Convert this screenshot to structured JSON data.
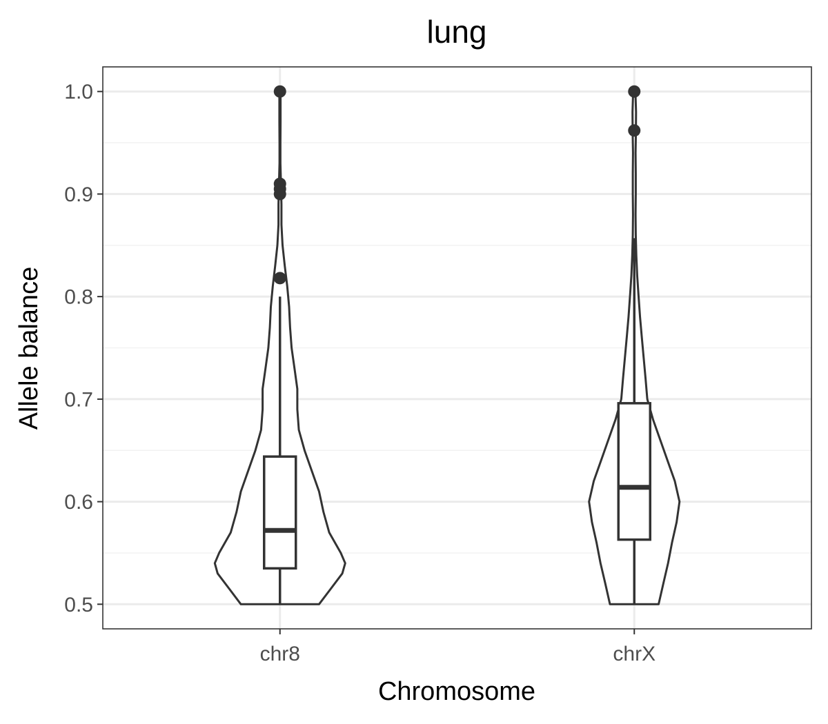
{
  "chart_data": {
    "type": "violin",
    "title": "lung",
    "xlabel": "Chromosome",
    "ylabel": "Allele balance",
    "categories": [
      "chr8",
      "chrX"
    ],
    "ylim": [
      0.476,
      1.024
    ],
    "yticks": [
      0.5,
      0.6,
      0.7,
      0.8,
      0.9,
      1.0
    ],
    "ytick_labels": [
      "0.5",
      "0.6",
      "0.7",
      "0.8",
      "0.9",
      "1.0"
    ],
    "grid": true,
    "colors": {
      "stroke": "#333333",
      "grid_major": "#ebebeb",
      "grid_minor": "#f2f2f2",
      "panel_border": "#333333"
    },
    "violins": [
      {
        "category": "chr8",
        "min": 0.5,
        "max": 1.0,
        "profile": [
          [
            0.5,
            0.27
          ],
          [
            0.515,
            0.35
          ],
          [
            0.53,
            0.43
          ],
          [
            0.54,
            0.45
          ],
          [
            0.55,
            0.42
          ],
          [
            0.57,
            0.34
          ],
          [
            0.59,
            0.3
          ],
          [
            0.61,
            0.27
          ],
          [
            0.63,
            0.22
          ],
          [
            0.65,
            0.17
          ],
          [
            0.67,
            0.13
          ],
          [
            0.69,
            0.12
          ],
          [
            0.71,
            0.12
          ],
          [
            0.73,
            0.1
          ],
          [
            0.75,
            0.08
          ],
          [
            0.77,
            0.07
          ],
          [
            0.79,
            0.063
          ],
          [
            0.81,
            0.05
          ],
          [
            0.83,
            0.033
          ],
          [
            0.85,
            0.018
          ],
          [
            0.87,
            0.01
          ],
          [
            0.89,
            0.01
          ],
          [
            0.91,
            0.007
          ],
          [
            0.93,
            0.003
          ],
          [
            0.95,
            0.003
          ],
          [
            0.97,
            0.004
          ],
          [
            0.99,
            0.004
          ],
          [
            1.0,
            0.004
          ]
        ],
        "box": {
          "q1": 0.535,
          "median": 0.572,
          "q3": 0.644,
          "whisker_low": 0.5,
          "whisker_high": 0.8
        },
        "outliers": [
          1.0,
          0.91,
          0.905,
          0.9,
          0.818
        ]
      },
      {
        "category": "chrX",
        "min": 0.5,
        "max": 1.0,
        "profile": [
          [
            0.5,
            0.168
          ],
          [
            0.52,
            0.2
          ],
          [
            0.54,
            0.233
          ],
          [
            0.56,
            0.26
          ],
          [
            0.58,
            0.292
          ],
          [
            0.6,
            0.312
          ],
          [
            0.62,
            0.28
          ],
          [
            0.64,
            0.23
          ],
          [
            0.66,
            0.18
          ],
          [
            0.68,
            0.13
          ],
          [
            0.7,
            0.09
          ],
          [
            0.72,
            0.078
          ],
          [
            0.74,
            0.065
          ],
          [
            0.76,
            0.052
          ],
          [
            0.78,
            0.04
          ],
          [
            0.8,
            0.03
          ],
          [
            0.82,
            0.02
          ],
          [
            0.84,
            0.014
          ],
          [
            0.86,
            0.01
          ],
          [
            0.88,
            0.009
          ],
          [
            0.9,
            0.01
          ],
          [
            0.92,
            0.01
          ],
          [
            0.94,
            0.009
          ],
          [
            0.96,
            0.011
          ],
          [
            0.98,
            0.012
          ],
          [
            1.0,
            0.008
          ]
        ],
        "box": {
          "q1": 0.563,
          "median": 0.614,
          "q3": 0.696,
          "whisker_low": 0.5,
          "whisker_high": 0.857
        },
        "outliers": [
          1.0,
          0.962
        ]
      }
    ]
  }
}
